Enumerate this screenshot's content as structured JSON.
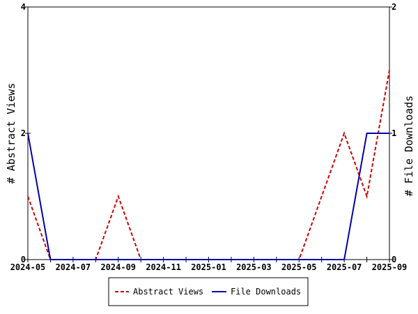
{
  "chart_data": {
    "type": "line",
    "x": [
      "2024-05",
      "2024-06",
      "2024-07",
      "2024-08",
      "2024-09",
      "2024-10",
      "2024-11",
      "2024-12",
      "2025-01",
      "2025-02",
      "2025-03",
      "2025-04",
      "2025-05",
      "2025-06",
      "2025-07",
      "2025-08",
      "2025-09"
    ],
    "x_tick_labels": [
      "2024-05",
      "2024-07",
      "2024-09",
      "2024-11",
      "2025-01",
      "2025-03",
      "2025-05",
      "2025-07",
      "2025-09"
    ],
    "series": [
      {
        "name": "Abstract Views",
        "axis": "left",
        "color": "#cc0000",
        "dash": "dashed",
        "values": [
          1,
          0,
          0,
          0,
          1,
          0,
          0,
          0,
          0,
          0,
          0,
          0,
          0,
          1,
          2,
          1,
          3
        ]
      },
      {
        "name": "File Downloads",
        "axis": "right",
        "color": "#0000aa",
        "dash": "solid",
        "values": [
          1,
          0,
          0,
          0,
          0,
          0,
          0,
          0,
          0,
          0,
          0,
          0,
          0,
          0,
          0,
          1,
          1
        ]
      }
    ],
    "ylabel_left": "# Abstract Views",
    "ylabel_right": "# File Downloads",
    "ylim_left": [
      0,
      4
    ],
    "ylim_right": [
      0,
      2
    ],
    "yticks_left": [
      "0",
      "2",
      "4"
    ],
    "yticks_right": [
      "0",
      "1",
      "2"
    ],
    "grid": false,
    "legend_position": "bottom-center"
  }
}
